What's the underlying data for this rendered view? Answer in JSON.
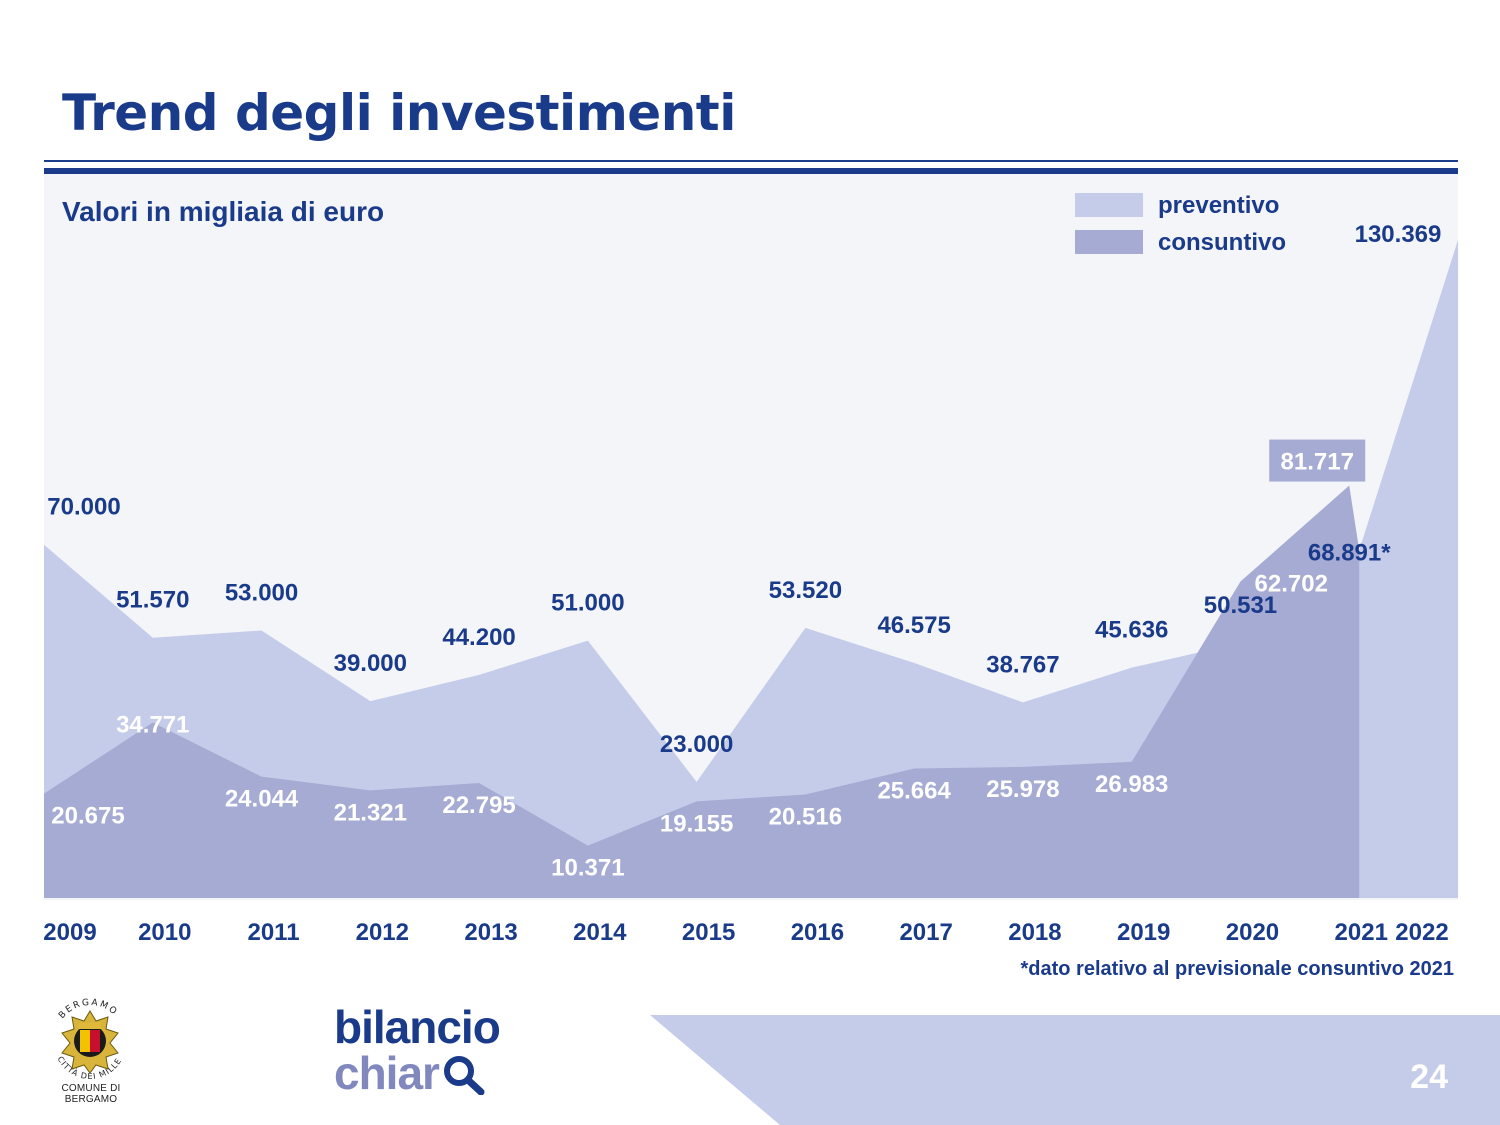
{
  "header": {
    "title": "Trend degli investimenti",
    "subtitle": "Valori in migliaia di euro"
  },
  "colors": {
    "brand": "#1a3a8a",
    "preventivo": "#c5cce9",
    "consuntivo": "#a6abd3"
  },
  "chart_data": {
    "type": "area",
    "categories": [
      "2009",
      "2010",
      "2011",
      "2012",
      "2013",
      "2014",
      "2015",
      "2016",
      "2017",
      "2018",
      "2019",
      "2020",
      "2021",
      "2022"
    ],
    "series": [
      {
        "name": "preventivo",
        "values": [
          70000,
          51570,
          53000,
          39000,
          44200,
          51000,
          23000,
          53520,
          46575,
          38767,
          45636,
          50531,
          62702,
          130369
        ],
        "labels": [
          "70.000",
          "51.570",
          "53.000",
          "39.000",
          "44.200",
          "51.000",
          "23.000",
          "53.520",
          "46.575",
          "38.767",
          "45.636",
          "50.531",
          "62.702",
          "130.369"
        ]
      },
      {
        "name": "consuntivo",
        "values": [
          20675,
          34771,
          24044,
          21321,
          22795,
          10371,
          19155,
          20516,
          25664,
          25978,
          26983,
          62702,
          81717,
          null
        ],
        "labels": [
          "20.675",
          "34.771",
          "24.044",
          "21.321",
          "22.795",
          "10.371",
          "19.155",
          "20.516",
          "25.664",
          "25.978",
          "26.983",
          "",
          "81.717",
          ""
        ]
      }
    ],
    "annotations": [
      {
        "year": "2021",
        "value": 68891,
        "text": "68.891*"
      }
    ],
    "ylim": [
      0,
      135000
    ],
    "legend_position": "top-right",
    "grid": false
  },
  "footnote": "*dato relativo al previsionale consuntivo 2021",
  "footer": {
    "logo_text_arc": "BERGAMO",
    "logo_text_motto": "CITTÀ DEI MILLE",
    "logo_caption": "COMUNE DI BERGAMO",
    "brand_line1": "bilancio",
    "brand_line2": "chiar",
    "page_number": "24"
  }
}
